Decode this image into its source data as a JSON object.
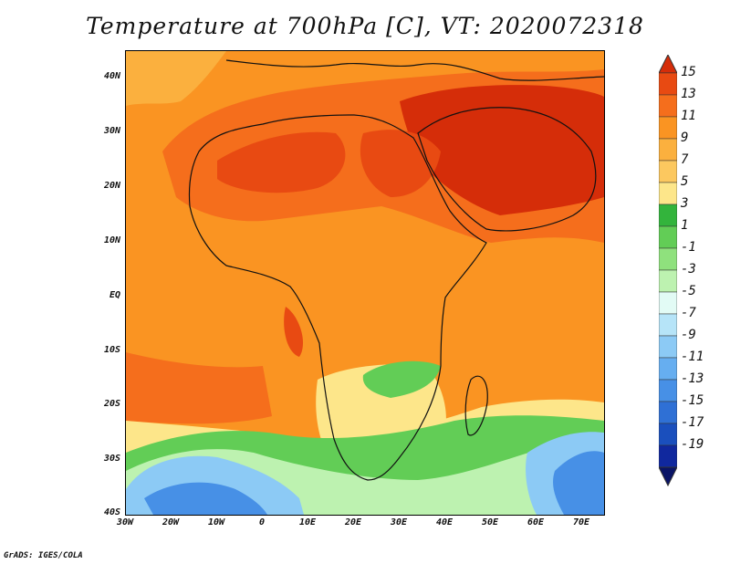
{
  "title": "Temperature at 700hPa [C], VT: 2020072318",
  "credit": "GrADS: IGES/COLA",
  "map": {
    "lat_labels": [
      "40N",
      "30N",
      "20N",
      "10N",
      "EQ",
      "10S",
      "20S",
      "30S",
      "40S"
    ],
    "lon_labels": [
      "30W",
      "20W",
      "10W",
      "0",
      "10E",
      "20E",
      "30E",
      "40E",
      "50E",
      "60E",
      "70E"
    ],
    "lat_range": [
      -40,
      44
    ],
    "lon_range": [
      -30,
      75
    ]
  },
  "colorbar": {
    "labels": [
      "15",
      "13",
      "11",
      "9",
      "7",
      "5",
      "3",
      "1",
      "-1",
      "-3",
      "-5",
      "-7",
      "-9",
      "-11",
      "-13",
      "-15",
      "-17",
      "-19"
    ],
    "colors": [
      "#d52d09",
      "#e84a12",
      "#f56e1c",
      "#fa9422",
      "#fbb03e",
      "#fcc85f",
      "#fde68a",
      "#33b43c",
      "#62cd56",
      "#8fe17d",
      "#bdf2b0",
      "#e2fbf5",
      "#b6e4f8",
      "#8ccaf5",
      "#66aef0",
      "#4790e6",
      "#2f70d5",
      "#1a4fbd",
      "#10289e",
      "#0a1466"
    ]
  }
}
